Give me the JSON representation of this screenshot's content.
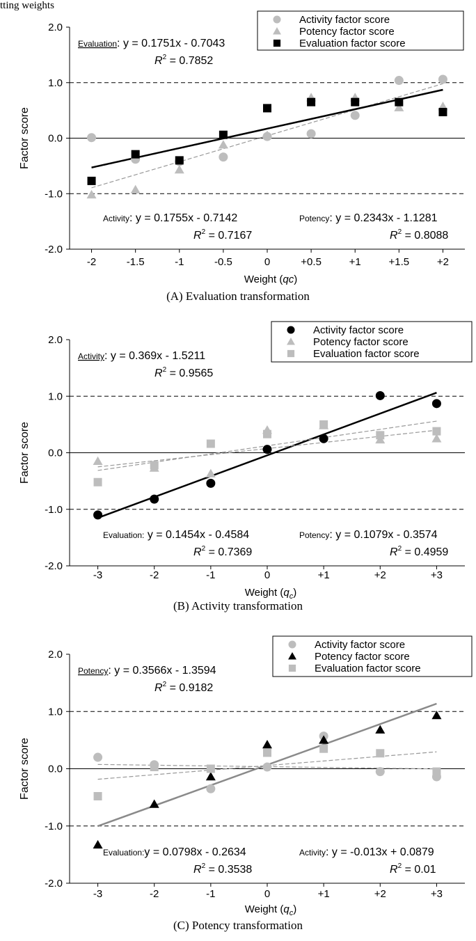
{
  "top_fragment": "tting weights",
  "chart_data": [
    {
      "type": "scatter",
      "caption": "(A) Evaluation transformation",
      "xlabel_main": "Weight (",
      "xlabel_var": "qc",
      "xlabel_sub": "",
      "xlabel_close": ")",
      "ylabel": "Factor score",
      "categories": [
        "-2",
        "-1.5",
        "-1",
        "-0.5",
        "0",
        "+0.5",
        "+1",
        "+1.5",
        "+2"
      ],
      "x": [
        -2,
        -1.5,
        -1,
        -0.5,
        0,
        0.5,
        1,
        1.5,
        2
      ],
      "ylim": [
        -2,
        2
      ],
      "yticks": [
        "2.0",
        "1.0",
        "0.0",
        "-1.0",
        "-2.0"
      ],
      "ref_lines": [
        1,
        -1
      ],
      "series": [
        {
          "name": "Activity factor score",
          "marker": "circle",
          "color": "#bdbdbd",
          "values": [
            0.01,
            -0.38,
            -0.42,
            -0.34,
            0.03,
            0.08,
            0.41,
            1.04,
            1.06
          ]
        },
        {
          "name": "Potency factor score",
          "marker": "triangle",
          "color": "#bdbdbd",
          "values": [
            -1.02,
            -0.93,
            -0.57,
            -0.12,
            0.05,
            0.73,
            0.73,
            0.55,
            0.57
          ]
        },
        {
          "name": "Evaluation factor score",
          "marker": "square",
          "color": "#000000",
          "values": [
            -0.77,
            -0.29,
            -0.4,
            0.06,
            0.54,
            0.65,
            0.65,
            0.65,
            0.47
          ]
        }
      ],
      "fits": [
        {
          "series": "Activity factor score",
          "slope": 0.1755,
          "intercept": -0.7142,
          "style": "dashed",
          "color": "#999999"
        },
        {
          "series": "Potency factor score",
          "slope": 0.2343,
          "intercept": -1.1281,
          "style": "dashed",
          "color": "#999999"
        },
        {
          "series": "Evaluation factor score",
          "slope": 0.1751,
          "intercept": -0.7043,
          "style": "solid",
          "color": "#000000"
        }
      ],
      "annotations": [
        {
          "label": "Evaluation",
          "underline": true,
          "eq": ": y = 0.1751x  -  0.7043",
          "r2": "R  = 0.7852",
          "pos": "top-left"
        },
        {
          "label": "Activity",
          "underline": false,
          "eq": ":  y = 0.1755x  -  0.7142",
          "r2": "R  = 0.7167",
          "pos": "bottom-left"
        },
        {
          "label": "Potency",
          "underline": false,
          "eq": ": y = 0.2343x  -  1.1281",
          "r2": "R  = 0.8088",
          "pos": "bottom-right"
        }
      ],
      "legend": "top-right"
    },
    {
      "type": "scatter",
      "caption": "(B) Activity transformation",
      "xlabel_main": "Weight (",
      "xlabel_var": "q",
      "xlabel_sub": "c",
      "xlabel_close": ")",
      "ylabel": "Factor score",
      "categories": [
        "-3",
        "-2",
        "-1",
        "0",
        "+1",
        "+2",
        "+3"
      ],
      "x": [
        -3,
        -2,
        -1,
        0,
        1,
        2,
        3
      ],
      "ylim": [
        -2,
        2
      ],
      "yticks": [
        "2.0",
        "1.0",
        "0.0",
        "-1.0",
        "-2.0"
      ],
      "ref_lines": [
        1,
        -1
      ],
      "series": [
        {
          "name": "Activity factor score",
          "marker": "circle",
          "color": "#000000",
          "values": [
            -1.1,
            -0.82,
            -0.54,
            0.06,
            0.25,
            1.01,
            0.87
          ]
        },
        {
          "name": "Potency factor score",
          "marker": "triangle",
          "color": "#bdbdbd",
          "values": [
            -0.15,
            -0.27,
            -0.37,
            0.4,
            0.48,
            0.23,
            0.25
          ]
        },
        {
          "name": "Evaluation factor score",
          "marker": "square",
          "color": "#bdbdbd",
          "values": [
            -0.52,
            -0.22,
            0.16,
            0.33,
            0.5,
            0.31,
            0.38
          ]
        }
      ],
      "fits": [
        {
          "series": "Activity factor score",
          "slope": 0.369,
          "intercept": -1.5211,
          "style": "solid",
          "color": "#000000"
        },
        {
          "series": "Evaluation factor score",
          "slope": 0.1454,
          "intercept": -0.4584,
          "style": "dashed",
          "color": "#999999"
        },
        {
          "series": "Potency factor score",
          "slope": 0.1079,
          "intercept": -0.3574,
          "style": "dashed",
          "color": "#999999"
        }
      ],
      "annotations": [
        {
          "label": "Activity",
          "underline": true,
          "eq": ": y = 0.369x  -  1.5211",
          "r2": "R  = 0.9565",
          "pos": "top-left"
        },
        {
          "label": "Evaluation:",
          "underline": false,
          "eq": "  y = 0.1454x  -  0.4584",
          "r2": "R  = 0.7369",
          "pos": "bottom-left"
        },
        {
          "label": "Potency",
          "underline": false,
          "eq": ": y = 0.1079x  -  0.3574",
          "r2": "R  = 0.4959",
          "pos": "bottom-right"
        }
      ],
      "legend": "top-right"
    },
    {
      "type": "scatter",
      "caption": "(C) Potency transformation",
      "xlabel_main": "Weight (",
      "xlabel_var": "q",
      "xlabel_sub": "c",
      "xlabel_close": ")",
      "ylabel": "Factor score",
      "categories": [
        "-3",
        "-2",
        "-1",
        "0",
        "+1",
        "+2",
        "+3"
      ],
      "x": [
        -3,
        -2,
        -1,
        0,
        1,
        2,
        3
      ],
      "ylim": [
        -2,
        2
      ],
      "yticks": [
        "2.0",
        "1.0",
        "0.0",
        "-1.0",
        "-2.0"
      ],
      "ref_lines": [
        1,
        -1
      ],
      "series": [
        {
          "name": "Activity factor score",
          "marker": "circle",
          "color": "#bdbdbd",
          "values": [
            0.2,
            0.07,
            -0.35,
            0.03,
            0.57,
            -0.05,
            -0.14
          ]
        },
        {
          "name": "Potency factor score",
          "marker": "triangle",
          "color": "#000000",
          "values": [
            -1.33,
            -0.62,
            -0.14,
            0.42,
            0.5,
            0.68,
            0.93
          ]
        },
        {
          "name": "Evaluation factor score",
          "marker": "square",
          "color": "#bdbdbd",
          "values": [
            -0.48,
            0.03,
            0.0,
            0.28,
            0.35,
            0.27,
            -0.05
          ]
        }
      ],
      "fits": [
        {
          "series": "Potency factor score",
          "slope": 0.3566,
          "intercept": -1.3594,
          "style": "solid",
          "color": "#8a8a8a"
        },
        {
          "series": "Evaluation factor score",
          "slope": 0.0798,
          "intercept": -0.2634,
          "style": "dashed",
          "color": "#999999"
        },
        {
          "series": "Activity factor score",
          "slope": -0.013,
          "intercept": 0.0879,
          "style": "dashed",
          "color": "#999999"
        }
      ],
      "annotations": [
        {
          "label": "Potency",
          "underline": true,
          "eq": ": y = 0.3566x  -  1.3594",
          "r2": "R  = 0.9182",
          "pos": "top-left"
        },
        {
          "label": "Evaluation:",
          "underline": false,
          "eq": "y = 0.0798x  -  0.2634",
          "r2": "R  = 0.3538",
          "pos": "bottom-left"
        },
        {
          "label": "Activity",
          "underline": false,
          "eq": ":  y = -0.013x + 0.0879",
          "r2": "R  = 0.01",
          "pos": "bottom-right"
        }
      ],
      "legend": "top-right"
    }
  ]
}
